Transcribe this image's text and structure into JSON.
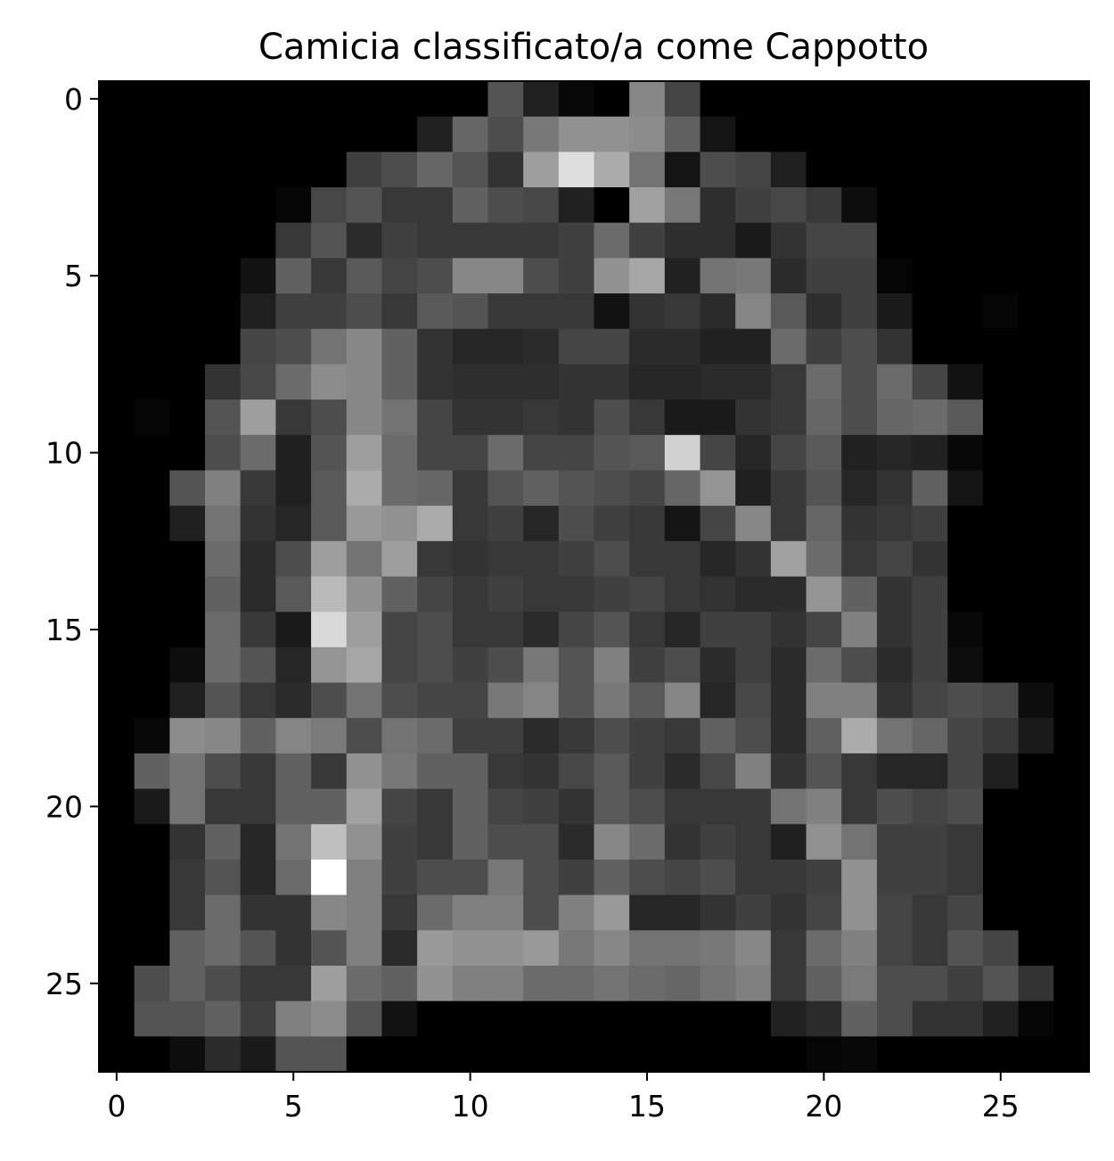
{
  "chart_data": {
    "type": "heatmap",
    "title": "Camicia classificato/a come Cappotto",
    "colormap": "gray",
    "value_range": [
      0,
      1
    ],
    "xlabel": "",
    "ylabel": "",
    "x_ticks": [
      0,
      5,
      10,
      15,
      20,
      25
    ],
    "y_ticks": [
      0,
      5,
      10,
      15,
      20,
      25
    ],
    "xlim": [
      -0.5,
      27.5
    ],
    "ylim": [
      27.5,
      -0.5
    ],
    "grid": false,
    "rows": 28,
    "cols": 28,
    "pixels": [
      [
        0.0,
        0.0,
        0.0,
        0.0,
        0.0,
        0.0,
        0.0,
        0.0,
        0.0,
        0.0,
        0.0,
        0.33,
        0.13,
        0.03,
        0.0,
        0.53,
        0.27,
        0.0,
        0.0,
        0.0,
        0.0,
        0.0,
        0.0,
        0.0,
        0.0,
        0.0,
        0.0,
        0.0
      ],
      [
        0.0,
        0.0,
        0.0,
        0.0,
        0.0,
        0.0,
        0.0,
        0.0,
        0.0,
        0.13,
        0.4,
        0.3,
        0.47,
        0.57,
        0.57,
        0.55,
        0.38,
        0.08,
        0.0,
        0.0,
        0.0,
        0.0,
        0.0,
        0.0,
        0.0,
        0.0,
        0.0,
        0.0
      ],
      [
        0.0,
        0.0,
        0.0,
        0.0,
        0.0,
        0.0,
        0.0,
        0.25,
        0.3,
        0.4,
        0.33,
        0.2,
        0.62,
        0.87,
        0.67,
        0.45,
        0.08,
        0.3,
        0.27,
        0.12,
        0.0,
        0.0,
        0.0,
        0.0,
        0.0,
        0.0,
        0.0,
        0.0
      ],
      [
        0.0,
        0.0,
        0.0,
        0.0,
        0.0,
        0.02,
        0.28,
        0.33,
        0.22,
        0.22,
        0.38,
        0.3,
        0.28,
        0.13,
        0.0,
        0.63,
        0.47,
        0.18,
        0.25,
        0.28,
        0.22,
        0.05,
        0.0,
        0.0,
        0.0,
        0.0,
        0.0,
        0.0
      ],
      [
        0.0,
        0.0,
        0.0,
        0.0,
        0.0,
        0.22,
        0.33,
        0.17,
        0.25,
        0.22,
        0.22,
        0.22,
        0.22,
        0.25,
        0.42,
        0.25,
        0.18,
        0.18,
        0.1,
        0.2,
        0.27,
        0.27,
        0.0,
        0.0,
        0.0,
        0.0,
        0.0,
        0.0
      ],
      [
        0.0,
        0.0,
        0.0,
        0.0,
        0.07,
        0.38,
        0.22,
        0.35,
        0.27,
        0.3,
        0.53,
        0.53,
        0.3,
        0.25,
        0.57,
        0.65,
        0.13,
        0.45,
        0.47,
        0.17,
        0.25,
        0.25,
        0.02,
        0.0,
        0.0,
        0.0,
        0.0,
        0.0
      ],
      [
        0.0,
        0.0,
        0.0,
        0.0,
        0.12,
        0.25,
        0.25,
        0.3,
        0.22,
        0.35,
        0.33,
        0.22,
        0.22,
        0.22,
        0.07,
        0.2,
        0.22,
        0.17,
        0.52,
        0.35,
        0.18,
        0.25,
        0.1,
        0.0,
        0.0,
        0.02,
        0.0,
        0.0
      ],
      [
        0.0,
        0.0,
        0.0,
        0.0,
        0.27,
        0.3,
        0.45,
        0.53,
        0.38,
        0.2,
        0.15,
        0.15,
        0.17,
        0.27,
        0.27,
        0.17,
        0.17,
        0.13,
        0.13,
        0.42,
        0.25,
        0.3,
        0.2,
        0.0,
        0.0,
        0.0,
        0.0,
        0.0
      ],
      [
        0.0,
        0.0,
        0.0,
        0.2,
        0.28,
        0.42,
        0.55,
        0.53,
        0.38,
        0.2,
        0.18,
        0.18,
        0.18,
        0.2,
        0.2,
        0.15,
        0.15,
        0.17,
        0.17,
        0.22,
        0.42,
        0.3,
        0.42,
        0.27,
        0.07,
        0.0,
        0.0,
        0.0
      ],
      [
        0.0,
        0.02,
        0.0,
        0.33,
        0.62,
        0.22,
        0.3,
        0.53,
        0.45,
        0.27,
        0.2,
        0.2,
        0.22,
        0.2,
        0.3,
        0.22,
        0.1,
        0.1,
        0.2,
        0.22,
        0.4,
        0.3,
        0.4,
        0.42,
        0.35,
        0.0,
        0.0,
        0.0
      ],
      [
        0.0,
        0.0,
        0.0,
        0.3,
        0.42,
        0.12,
        0.33,
        0.62,
        0.42,
        0.27,
        0.27,
        0.42,
        0.27,
        0.27,
        0.33,
        0.35,
        0.82,
        0.27,
        0.15,
        0.27,
        0.35,
        0.13,
        0.15,
        0.13,
        0.03,
        0.0,
        0.0,
        0.0
      ],
      [
        0.0,
        0.0,
        0.33,
        0.5,
        0.22,
        0.12,
        0.35,
        0.67,
        0.42,
        0.4,
        0.22,
        0.33,
        0.38,
        0.33,
        0.3,
        0.27,
        0.4,
        0.58,
        0.12,
        0.22,
        0.33,
        0.15,
        0.2,
        0.38,
        0.08,
        0.0,
        0.0,
        0.0
      ],
      [
        0.0,
        0.0,
        0.12,
        0.45,
        0.2,
        0.15,
        0.35,
        0.6,
        0.57,
        0.67,
        0.22,
        0.25,
        0.15,
        0.3,
        0.25,
        0.22,
        0.08,
        0.27,
        0.53,
        0.22,
        0.4,
        0.2,
        0.22,
        0.25,
        0.0,
        0.0,
        0.0,
        0.0
      ],
      [
        0.0,
        0.0,
        0.0,
        0.42,
        0.17,
        0.3,
        0.62,
        0.45,
        0.62,
        0.22,
        0.2,
        0.22,
        0.22,
        0.25,
        0.3,
        0.22,
        0.22,
        0.15,
        0.2,
        0.63,
        0.42,
        0.22,
        0.27,
        0.2,
        0.0,
        0.0,
        0.0,
        0.0
      ],
      [
        0.0,
        0.0,
        0.0,
        0.38,
        0.17,
        0.35,
        0.73,
        0.57,
        0.38,
        0.27,
        0.22,
        0.25,
        0.22,
        0.22,
        0.25,
        0.27,
        0.22,
        0.2,
        0.17,
        0.17,
        0.58,
        0.38,
        0.2,
        0.25,
        0.0,
        0.0,
        0.0,
        0.0
      ],
      [
        0.0,
        0.0,
        0.0,
        0.42,
        0.22,
        0.1,
        0.85,
        0.62,
        0.27,
        0.3,
        0.22,
        0.22,
        0.17,
        0.27,
        0.33,
        0.22,
        0.15,
        0.25,
        0.25,
        0.2,
        0.27,
        0.5,
        0.2,
        0.25,
        0.03,
        0.0,
        0.0,
        0.0
      ],
      [
        0.0,
        0.0,
        0.05,
        0.42,
        0.33,
        0.15,
        0.58,
        0.65,
        0.27,
        0.3,
        0.25,
        0.3,
        0.47,
        0.33,
        0.5,
        0.25,
        0.3,
        0.17,
        0.25,
        0.17,
        0.42,
        0.3,
        0.17,
        0.25,
        0.05,
        0.0,
        0.0,
        0.0
      ],
      [
        0.0,
        0.0,
        0.12,
        0.33,
        0.22,
        0.17,
        0.3,
        0.45,
        0.3,
        0.27,
        0.27,
        0.47,
        0.52,
        0.33,
        0.47,
        0.35,
        0.52,
        0.15,
        0.28,
        0.17,
        0.5,
        0.5,
        0.2,
        0.27,
        0.3,
        0.28,
        0.05,
        0.0
      ],
      [
        0.0,
        0.03,
        0.55,
        0.53,
        0.38,
        0.52,
        0.48,
        0.3,
        0.45,
        0.42,
        0.25,
        0.25,
        0.17,
        0.22,
        0.3,
        0.25,
        0.22,
        0.38,
        0.3,
        0.17,
        0.38,
        0.67,
        0.45,
        0.4,
        0.27,
        0.22,
        0.1,
        0.0
      ],
      [
        0.0,
        0.38,
        0.45,
        0.3,
        0.22,
        0.38,
        0.22,
        0.57,
        0.47,
        0.38,
        0.38,
        0.22,
        0.2,
        0.28,
        0.35,
        0.25,
        0.17,
        0.28,
        0.5,
        0.2,
        0.33,
        0.22,
        0.15,
        0.15,
        0.27,
        0.12,
        0.0,
        0.0
      ],
      [
        0.0,
        0.1,
        0.45,
        0.22,
        0.22,
        0.38,
        0.38,
        0.63,
        0.27,
        0.22,
        0.38,
        0.27,
        0.25,
        0.2,
        0.35,
        0.3,
        0.22,
        0.22,
        0.22,
        0.45,
        0.5,
        0.22,
        0.3,
        0.27,
        0.3,
        0.0,
        0.0,
        0.0
      ],
      [
        0.0,
        0.0,
        0.2,
        0.38,
        0.15,
        0.45,
        0.75,
        0.57,
        0.25,
        0.22,
        0.38,
        0.3,
        0.3,
        0.17,
        0.53,
        0.42,
        0.2,
        0.25,
        0.22,
        0.12,
        0.57,
        0.45,
        0.25,
        0.25,
        0.22,
        0.0,
        0.0,
        0.0
      ],
      [
        0.0,
        0.0,
        0.22,
        0.33,
        0.15,
        0.42,
        1.0,
        0.5,
        0.25,
        0.3,
        0.3,
        0.47,
        0.3,
        0.25,
        0.38,
        0.3,
        0.27,
        0.3,
        0.22,
        0.22,
        0.25,
        0.57,
        0.25,
        0.25,
        0.22,
        0.0,
        0.0,
        0.0
      ],
      [
        0.0,
        0.0,
        0.22,
        0.42,
        0.2,
        0.2,
        0.53,
        0.5,
        0.22,
        0.42,
        0.5,
        0.5,
        0.3,
        0.5,
        0.6,
        0.15,
        0.15,
        0.2,
        0.25,
        0.2,
        0.27,
        0.57,
        0.27,
        0.22,
        0.27,
        0.0,
        0.0,
        0.0
      ],
      [
        0.0,
        0.0,
        0.38,
        0.42,
        0.33,
        0.2,
        0.33,
        0.5,
        0.17,
        0.6,
        0.57,
        0.57,
        0.6,
        0.47,
        0.53,
        0.45,
        0.45,
        0.47,
        0.53,
        0.22,
        0.42,
        0.5,
        0.27,
        0.22,
        0.33,
        0.27,
        0.0,
        0.0
      ],
      [
        0.0,
        0.3,
        0.38,
        0.3,
        0.22,
        0.22,
        0.62,
        0.42,
        0.38,
        0.57,
        0.5,
        0.5,
        0.42,
        0.42,
        0.45,
        0.42,
        0.4,
        0.45,
        0.5,
        0.22,
        0.38,
        0.48,
        0.3,
        0.3,
        0.25,
        0.33,
        0.2,
        0.0
      ],
      [
        0.0,
        0.33,
        0.33,
        0.38,
        0.25,
        0.5,
        0.55,
        0.33,
        0.07,
        0.0,
        0.0,
        0.0,
        0.0,
        0.0,
        0.0,
        0.0,
        0.0,
        0.0,
        0.0,
        0.13,
        0.17,
        0.38,
        0.3,
        0.2,
        0.2,
        0.13,
        0.02,
        0.0
      ],
      [
        0.0,
        0.0,
        0.05,
        0.17,
        0.1,
        0.33,
        0.33,
        0.0,
        0.0,
        0.0,
        0.0,
        0.0,
        0.0,
        0.0,
        0.0,
        0.0,
        0.0,
        0.0,
        0.0,
        0.0,
        0.02,
        0.03,
        0.0,
        0.0,
        0.0,
        0.0,
        0.0,
        0.0
      ]
    ]
  }
}
